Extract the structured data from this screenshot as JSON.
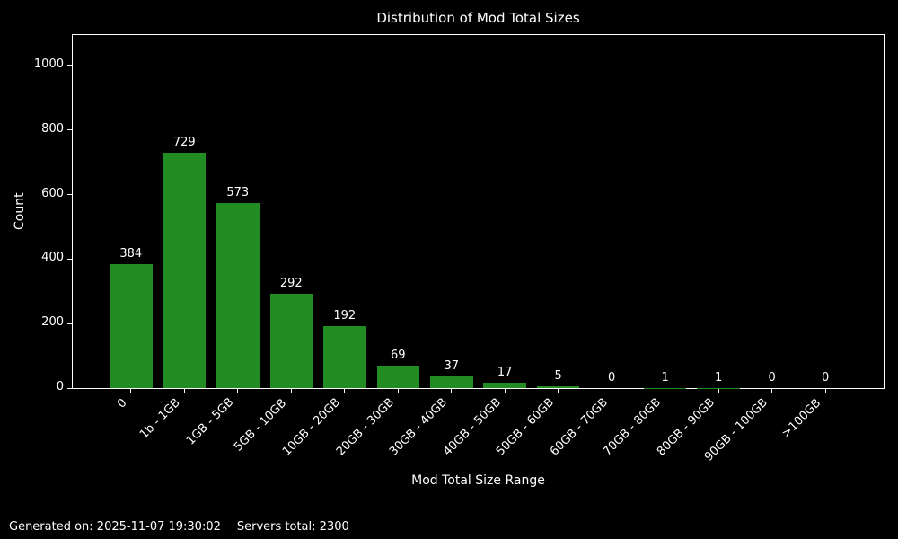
{
  "chart_data": {
    "type": "bar",
    "title": "Distribution of Mod Total Sizes",
    "xlabel": "Mod Total Size Range",
    "ylabel": "Count",
    "categories": [
      "0",
      "1b - 1GB",
      "1GB - 5GB",
      "5GB - 10GB",
      "10GB - 20GB",
      "20GB - 30GB",
      "30GB - 40GB",
      "40GB - 50GB",
      "50GB - 60GB",
      "60GB - 70GB",
      "70GB - 80GB",
      "80GB - 90GB",
      "90GB - 100GB",
      ">100GB"
    ],
    "values": [
      384,
      729,
      573,
      292,
      192,
      69,
      37,
      17,
      5,
      0,
      1,
      1,
      0,
      0
    ],
    "yticks": [
      0,
      200,
      400,
      600,
      800,
      1000
    ],
    "ylim": [
      0,
      1094
    ],
    "x_tick_rotation": 45,
    "grid": false,
    "legend": "none",
    "bar_labels": true,
    "bar_color": "#228B22",
    "background_color": "#000000",
    "text_color": "#ffffff"
  },
  "footer": {
    "generated_on": "Generated on: 2025-11-07 19:30:02",
    "servers_total": "Servers total: 2300"
  }
}
